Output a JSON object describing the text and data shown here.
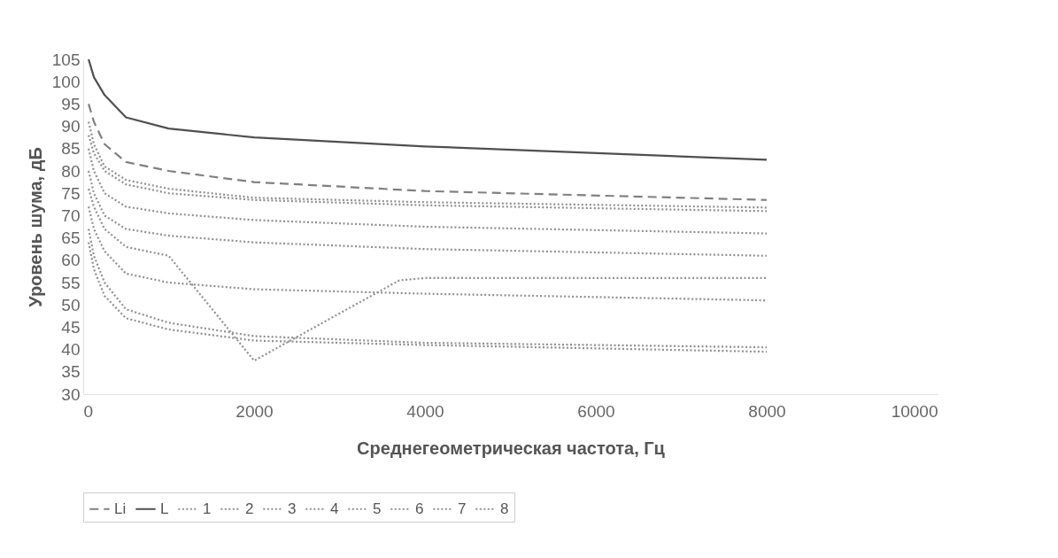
{
  "chart_data": {
    "type": "line",
    "xlabel": "Среднегеометрическая частота, Гц",
    "ylabel": "Уровень шума, дБ",
    "x": [
      63,
      125,
      250,
      500,
      1000,
      2000,
      4000,
      8000
    ],
    "xlim": [
      0,
      10000
    ],
    "xticks": [
      0,
      2000,
      4000,
      6000,
      8000,
      10000
    ],
    "ylim": [
      30,
      105
    ],
    "yticks": [
      30,
      35,
      40,
      45,
      50,
      55,
      60,
      65,
      70,
      75,
      80,
      85,
      90,
      95,
      100,
      105
    ],
    "grid": false,
    "legend": "bottom",
    "marker": "none",
    "series": [
      {
        "name": "Li",
        "color": "#808080",
        "line_style": "dashed",
        "values": [
          95,
          91,
          86,
          82,
          80,
          77.5,
          75.5,
          73.5
        ]
      },
      {
        "name": "L",
        "color": "#505050",
        "line_style": "solid",
        "values": [
          105,
          101,
          97,
          92,
          89.5,
          87.5,
          85.5,
          82.5
        ]
      },
      {
        "name": "1",
        "color": "#909090",
        "line_style": "dotted",
        "values": [
          91,
          86,
          81,
          78,
          76,
          74,
          73,
          71.8
        ]
      },
      {
        "name": "2",
        "color": "#909090",
        "line_style": "dotted",
        "values": [
          88,
          84,
          80,
          77,
          75,
          73.5,
          72.3,
          71
        ]
      },
      {
        "name": "3",
        "color": "#909090",
        "line_style": "dotted",
        "values": [
          85,
          80,
          75,
          72,
          70.5,
          69,
          67.5,
          66
        ]
      },
      {
        "name": "4",
        "color": "#909090",
        "line_style": "dotted",
        "values": [
          80,
          75,
          70,
          67,
          65.5,
          64,
          62.5,
          61
        ]
      },
      {
        "name": "5",
        "color": "#909090",
        "line_style": "dotted",
        "x": [
          63,
          125,
          250,
          500,
          1000,
          2000,
          3700,
          4000,
          8000
        ],
        "values": [
          76,
          72,
          67,
          63,
          61,
          37.5,
          55.5,
          56,
          56
        ]
      },
      {
        "name": "6",
        "color": "#909090",
        "line_style": "dotted",
        "values": [
          72,
          67,
          62,
          57,
          55,
          53.5,
          52.5,
          51
        ]
      },
      {
        "name": "7",
        "color": "#909090",
        "line_style": "dotted",
        "values": [
          67,
          61,
          55,
          49,
          46,
          43,
          41.5,
          40.5
        ]
      },
      {
        "name": "8",
        "color": "#909090",
        "line_style": "dotted",
        "values": [
          64,
          58,
          52,
          47,
          44.5,
          42,
          41,
          39.5
        ]
      }
    ]
  }
}
